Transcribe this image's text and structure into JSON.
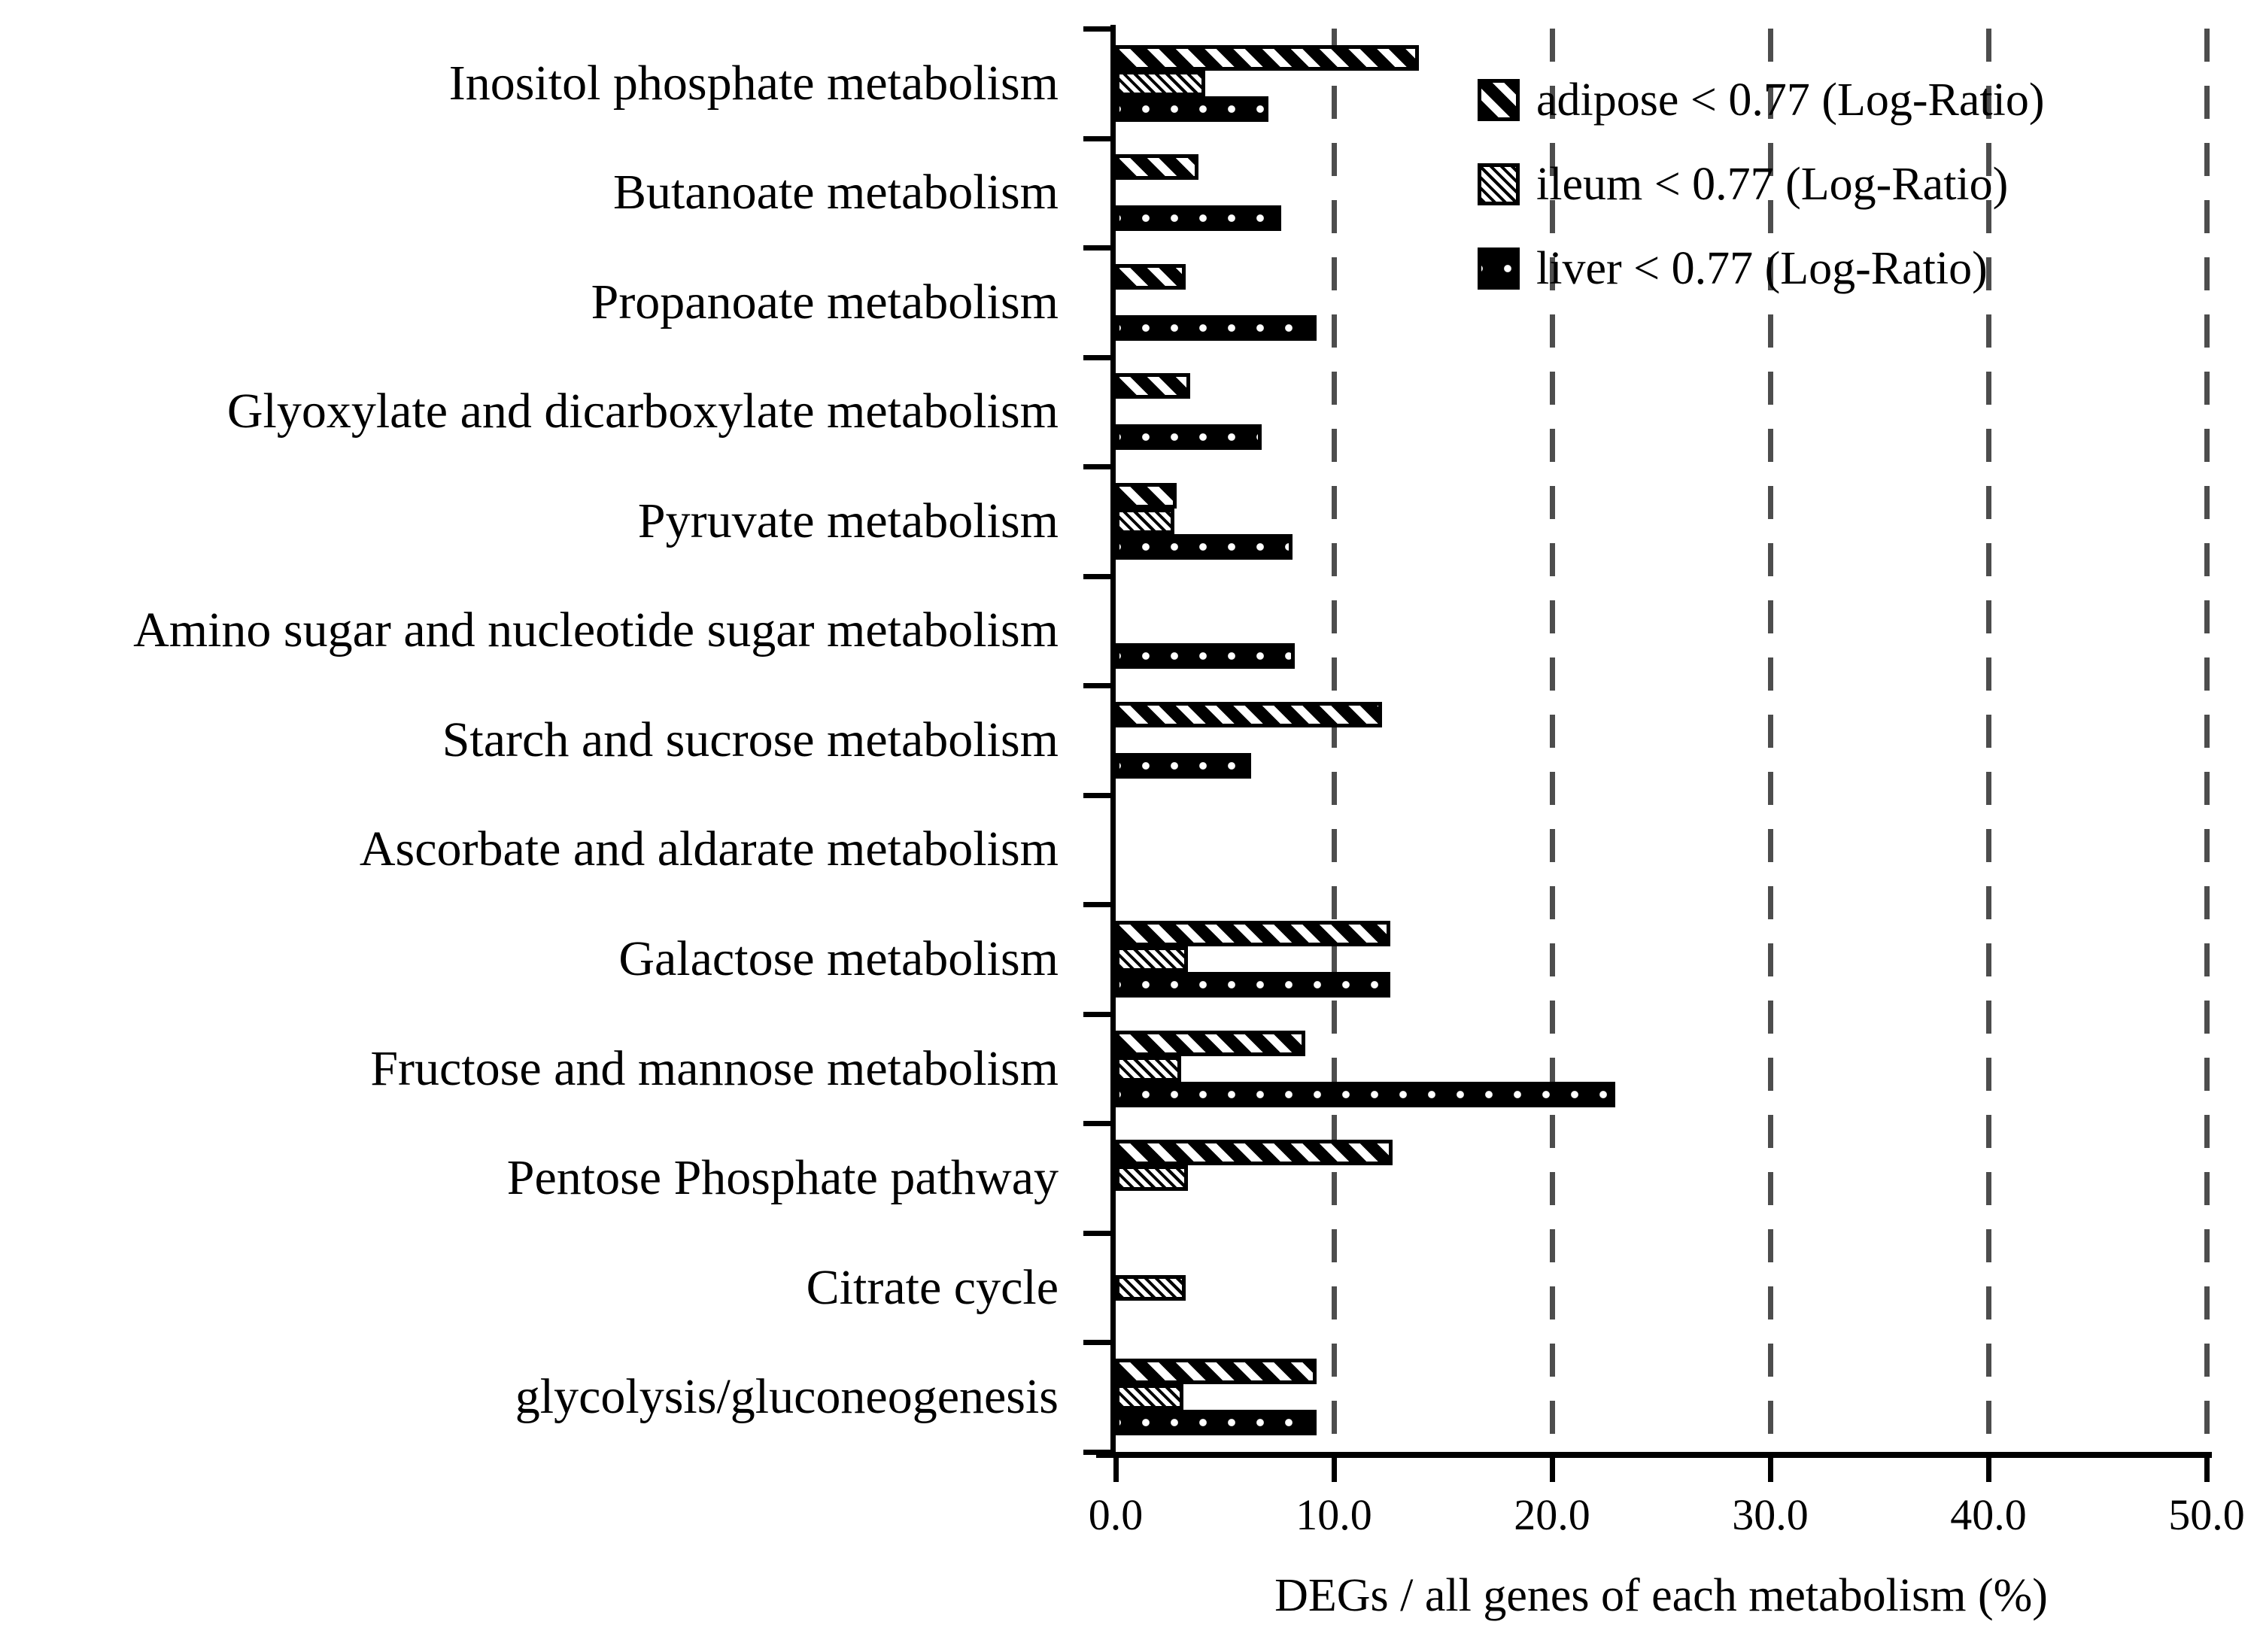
{
  "chart_data": {
    "type": "bar",
    "orientation": "horizontal",
    "title": "",
    "xlabel": "DEGs / all genes of each metabolism (%)",
    "ylabel": "",
    "xlim": [
      0,
      50
    ],
    "xticks": [
      0,
      10,
      20,
      30,
      40,
      50
    ],
    "xtick_labels": [
      "0.0",
      "10.0",
      "20.0",
      "30.0",
      "40.0",
      "50.0"
    ],
    "grid": "vertical-dashed-gridlines-at-each-xtick",
    "legend_position": "top-right-inside-plot",
    "categories": [
      "Inositol phosphate metabolism",
      "Butanoate metabolism",
      "Propanoate metabolism",
      "Glyoxylate and dicarboxylate metabolism",
      "Pyruvate metabolism",
      "Amino sugar and nucleotide sugar metabolism",
      "Starch and sucrose metabolism",
      "Ascorbate and aldarate metabolism",
      "Galactose metabolism",
      "Fructose and mannose metabolism",
      "Pentose Phosphate pathway",
      "Citrate cycle",
      "glycolysis/gluconeogenesis"
    ],
    "series": [
      {
        "key": "adipose",
        "name": "adipose < 0.77 (Log-Ratio)",
        "pattern": "bold-black-diagonal-stripes",
        "values": [
          13.9,
          3.8,
          3.2,
          3.4,
          2.8,
          0,
          12.2,
          0,
          12.6,
          8.7,
          12.7,
          0,
          9.2
        ]
      },
      {
        "key": "ileum",
        "name": "ileum < 0.77 (Log-Ratio)",
        "pattern": "fine-diagonal-hatch",
        "values": [
          4.1,
          0,
          0,
          0,
          2.7,
          0,
          0,
          0,
          3.3,
          3.0,
          3.3,
          3.2,
          3.1
        ]
      },
      {
        "key": "liver",
        "name": "liver < 0.77 (Log-Ratio)",
        "pattern": "solid-black-with-white-dots",
        "values": [
          7.0,
          7.6,
          9.2,
          6.7,
          8.1,
          8.2,
          6.2,
          0,
          12.6,
          22.9,
          0,
          0,
          9.2
        ]
      }
    ]
  },
  "colors": {
    "bar": "#000000",
    "grid_line": "#4d4d4d",
    "background": "#ffffff",
    "text": "#000000"
  }
}
